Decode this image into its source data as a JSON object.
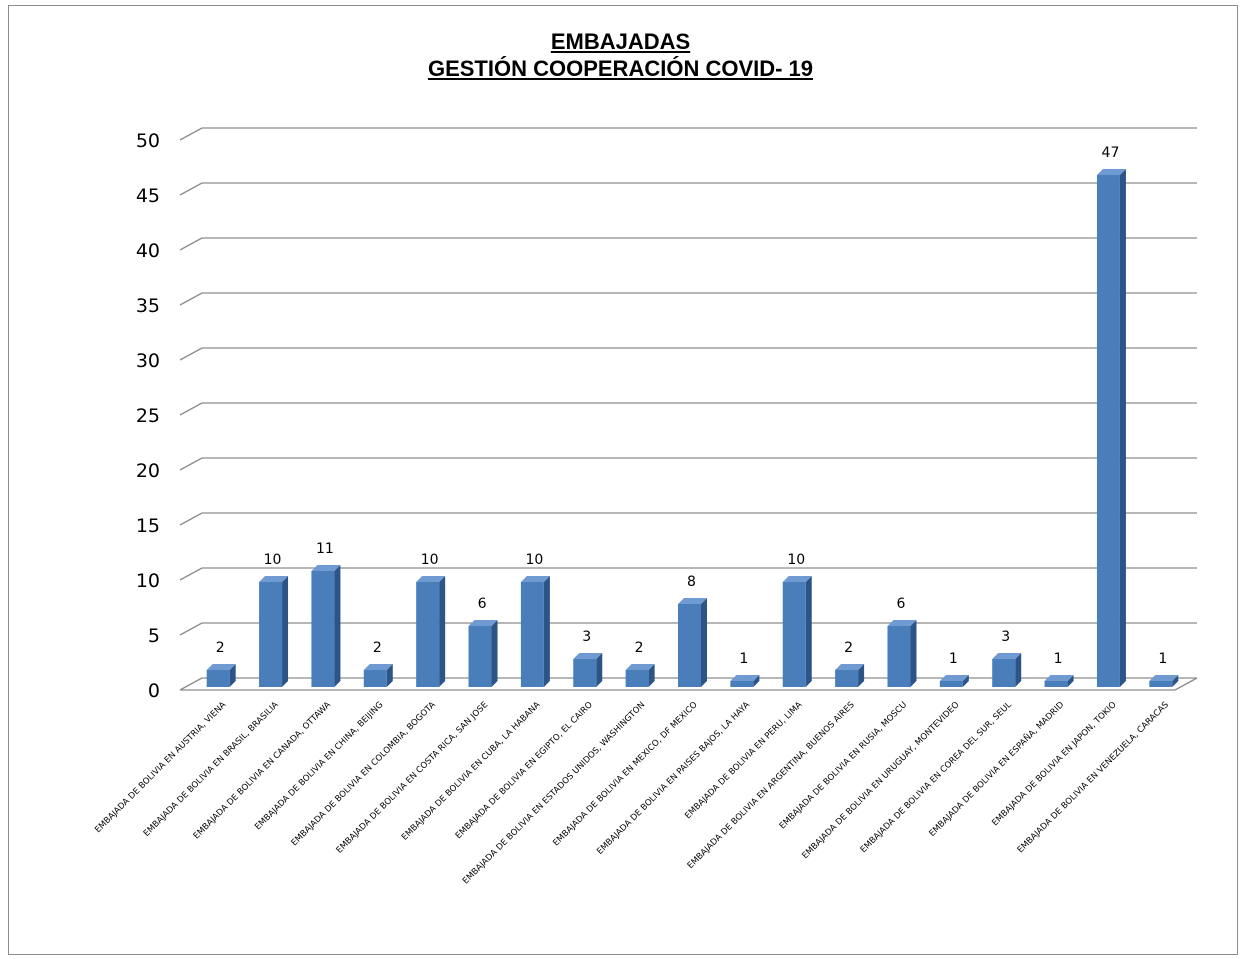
{
  "chart_data": {
    "type": "bar",
    "title": [
      "EMBAJADAS",
      "GESTIÓN COOPERACIÓN COVID- 19"
    ],
    "ylim": [
      0,
      50
    ],
    "yticks": [
      0,
      5,
      10,
      15,
      20,
      25,
      30,
      35,
      40,
      45,
      50
    ],
    "grid": true,
    "three_d": true,
    "bar_color": "#4a7ebb",
    "bar_side_color": "#2c5487",
    "bar_top_color": "#6f9bd2",
    "categories": [
      "EMBAJADA DE BOLIVIA EN AUSTRIA, VIENA",
      "EMBAJADA DE BOLIVIA EN BRASIL, BRASILIA",
      "EMBAJADA DE BOLIVIA EN CANADA, OTTAWA",
      "EMBAJADA DE BOLIVIA EN CHINA, BEIJING",
      "EMBAJADA DE BOLIVIA EN COLOMBIA, BOGOTA",
      "EMBAJADA DE BOLIVIA EN COSTA RICA, SAN JOSE",
      "EMBAJADA DE BOLIVIA EN CUBA, LA HABANA",
      "EMBAJADA DE BOLIVIA EN EGIPTO, EL CAIRO",
      "EMBAJADA DE BOLIVIA EN ESTADOS UNIDOS, WASHINGTON",
      "EMBAJADA DE BOLIVIA EN MEXICO, DF MEXICO",
      "EMBAJADA DE BOLIVIA EN PAISES BAJOS, LA HAYA",
      "EMBAJADA DE BOLIVIA EN PERU, LIMA",
      "EMBAJADA DE BOLIVIA EN ARGENTINA, BUENOS AIRES",
      "EMBAJADA DE BOLIVIA EN RUSIA, MOSCU",
      "EMBAJADA DE BOLIVIA EN URUGUAY, MONTEVIDEO",
      "EMBAJADA DE BOLIVIA EN COREA DEL SUR, SEUL",
      "EMBAJADA DE BOLIVIA EN ESPAÑA, MADRID",
      "EMBAJADA DE BOLIVIA EN JAPON, TOKIO",
      "EMBAJADA DE BOLIVIA EN VENEZUELA, CARACAS"
    ],
    "values": [
      2,
      10,
      11,
      2,
      10,
      6,
      10,
      3,
      2,
      8,
      1,
      10,
      2,
      6,
      1,
      3,
      1,
      47,
      1
    ],
    "data_labels": true
  }
}
